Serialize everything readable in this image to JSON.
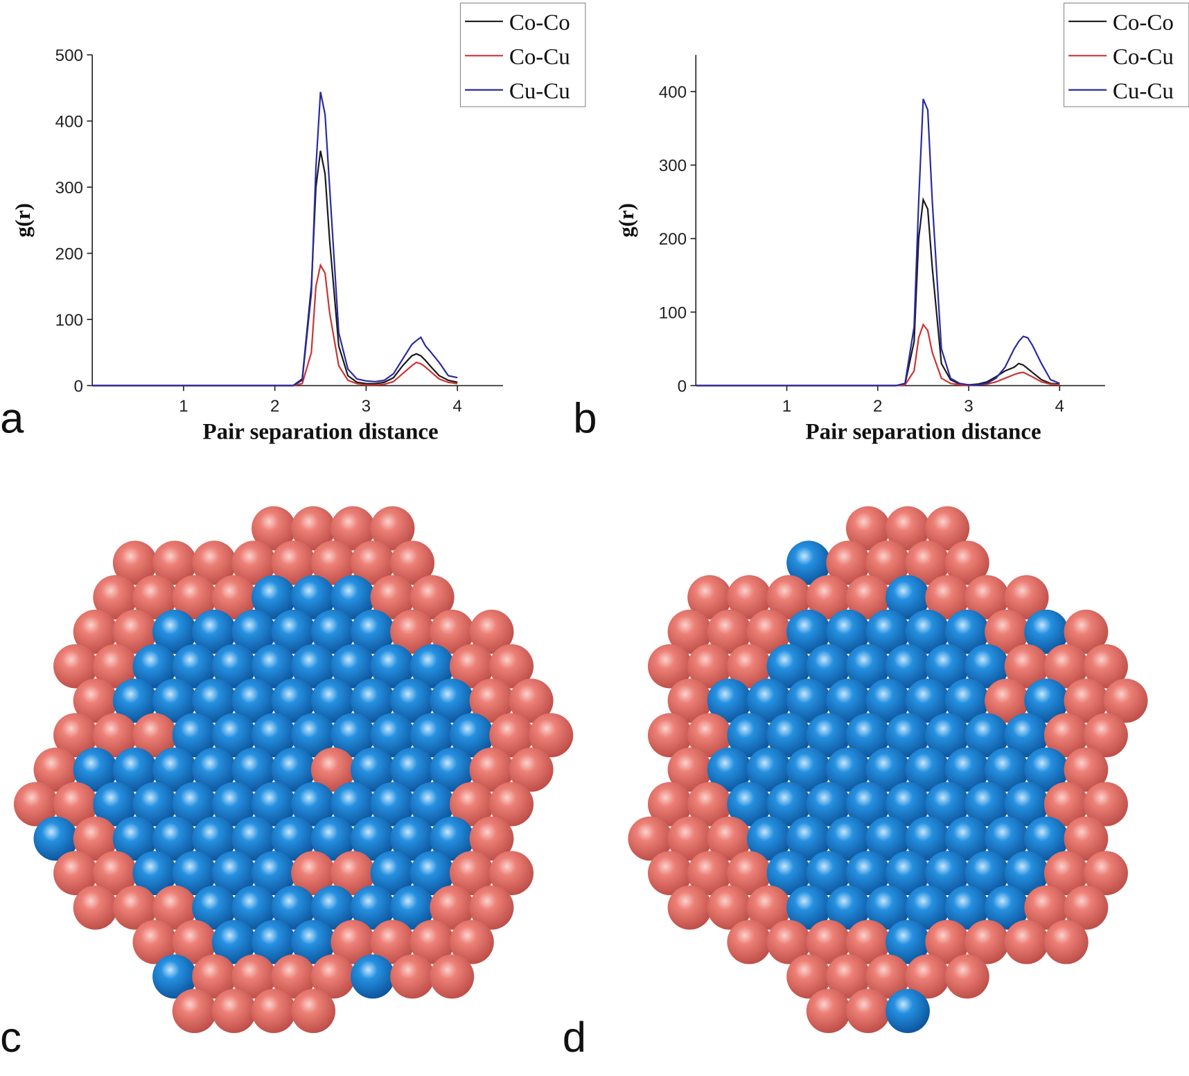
{
  "panel_labels": [
    "a",
    "b",
    "c",
    "d"
  ],
  "chart_data": [
    {
      "type": "line",
      "x_label": "Pair separation distance",
      "y_label": "g(r)",
      "x": [
        0,
        2.2,
        2.3,
        2.4,
        2.45,
        2.5,
        2.55,
        2.6,
        2.7,
        2.8,
        2.9,
        3.0,
        3.1,
        3.2,
        3.3,
        3.4,
        3.5,
        3.55,
        3.6,
        3.65,
        3.7,
        3.8,
        3.9,
        4.0
      ],
      "xlim": [
        0,
        4.5
      ],
      "xticks": [
        1,
        2,
        3,
        4
      ],
      "ylim": [
        0,
        500
      ],
      "yticks": [
        0,
        100,
        200,
        300,
        400,
        500
      ],
      "legend": "upper right",
      "series": [
        {
          "name": "Co-Co",
          "color": "#1a1a1a",
          "values": [
            0,
            0,
            10,
            150,
            300,
            355,
            320,
            220,
            60,
            15,
            5,
            3,
            3,
            5,
            12,
            30,
            45,
            48,
            45,
            38,
            30,
            15,
            8,
            5
          ]
        },
        {
          "name": "Co-Cu",
          "color": "#cc3333",
          "values": [
            0,
            0,
            3,
            50,
            150,
            182,
            170,
            110,
            30,
            8,
            3,
            1,
            1,
            2,
            6,
            18,
            30,
            35,
            33,
            28,
            22,
            10,
            5,
            3
          ]
        },
        {
          "name": "Cu-Cu",
          "color": "#2a2aa0",
          "values": [
            0,
            0,
            8,
            140,
            330,
            444,
            410,
            300,
            80,
            25,
            10,
            7,
            6,
            8,
            18,
            40,
            62,
            68,
            73,
            60,
            52,
            35,
            15,
            12
          ]
        }
      ]
    },
    {
      "type": "line",
      "x_label": "Pair separation distance",
      "y_label": "g(r)",
      "x": [
        0,
        2.2,
        2.3,
        2.4,
        2.45,
        2.5,
        2.55,
        2.6,
        2.7,
        2.8,
        2.9,
        3.0,
        3.1,
        3.2,
        3.3,
        3.4,
        3.5,
        3.55,
        3.6,
        3.65,
        3.7,
        3.8,
        3.9,
        4.0
      ],
      "xlim": [
        0,
        4.5
      ],
      "xticks": [
        1,
        2,
        3,
        4
      ],
      "ylim": [
        0,
        450
      ],
      "yticks": [
        0,
        100,
        200,
        300,
        400
      ],
      "legend": "upper right",
      "series": [
        {
          "name": "Co-Co",
          "color": "#1a1a1a",
          "values": [
            0,
            0,
            2,
            60,
            200,
            253,
            240,
            160,
            30,
            8,
            2,
            1,
            2,
            5,
            12,
            20,
            25,
            30,
            28,
            23,
            18,
            8,
            3,
            2
          ]
        },
        {
          "name": "Co-Cu",
          "color": "#cc3333",
          "values": [
            0,
            0,
            1,
            20,
            65,
            83,
            75,
            45,
            10,
            3,
            1,
            0,
            1,
            2,
            5,
            10,
            15,
            17,
            18,
            15,
            12,
            5,
            2,
            1
          ]
        },
        {
          "name": "Cu-Cu",
          "color": "#2a2aa0",
          "values": [
            0,
            0,
            3,
            80,
            250,
            390,
            375,
            250,
            50,
            10,
            3,
            1,
            1,
            3,
            10,
            25,
            50,
            60,
            67,
            65,
            55,
            30,
            8,
            3
          ]
        }
      ]
    }
  ]
}
